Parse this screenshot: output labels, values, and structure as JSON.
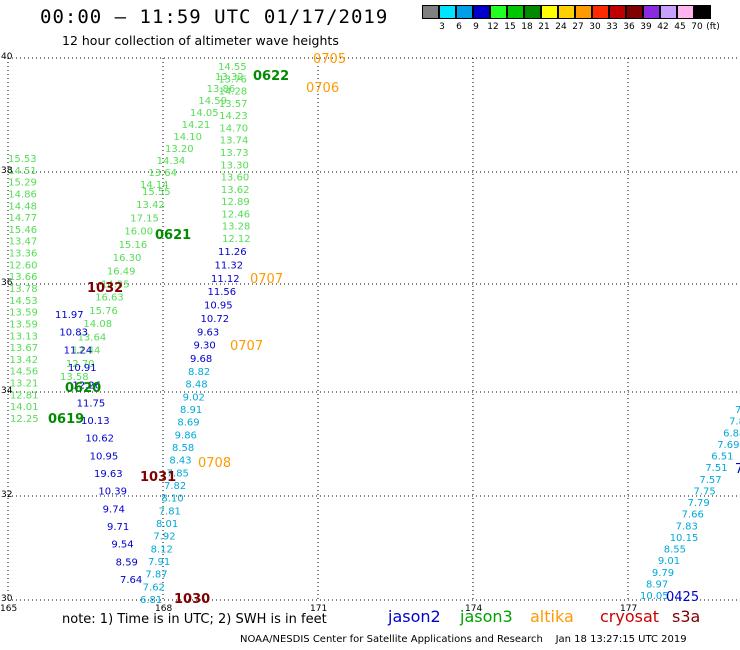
{
  "header": {
    "title": "00:00 — 11:59 UTC 01/17/2019",
    "subtitle": "12 hour collection of altimeter wave heights"
  },
  "legend": {
    "unit": "(ft)",
    "items": [
      {
        "label": "3",
        "color": "#808080"
      },
      {
        "label": "6",
        "color": "#00e5ff"
      },
      {
        "label": "9",
        "color": "#00a0e8"
      },
      {
        "label": "12",
        "color": "#0000cc"
      },
      {
        "label": "15",
        "color": "#22ff22"
      },
      {
        "label": "18",
        "color": "#00c800"
      },
      {
        "label": "21",
        "color": "#008a00"
      },
      {
        "label": "24",
        "color": "#ffff00"
      },
      {
        "label": "27",
        "color": "#ffd000"
      },
      {
        "label": "30",
        "color": "#ff9a00"
      },
      {
        "label": "33",
        "color": "#ff2a00"
      },
      {
        "label": "36",
        "color": "#c00000"
      },
      {
        "label": "39",
        "color": "#800000"
      },
      {
        "label": "42",
        "color": "#8a2be2"
      },
      {
        "label": "45",
        "color": "#c8a0ff"
      },
      {
        "label": "70",
        "color": "#ffb4f0"
      },
      {
        "label": "",
        "color": "#000000"
      }
    ]
  },
  "axes": {
    "lat_labels": [
      "40",
      "38",
      "36",
      "34",
      "32",
      "30"
    ],
    "lon_labels": [
      "165",
      "168",
      "171",
      "174",
      "177"
    ]
  },
  "footer": {
    "note": "note:  1) Time is in UTC;  2) SWH is in feet",
    "satellites": [
      {
        "name": "jason2",
        "color": "#0000cc"
      },
      {
        "name": "jason3",
        "color": "#00a000"
      },
      {
        "name": "altika",
        "color": "#ff9a00"
      },
      {
        "name": "cryosat",
        "color": "#cc0000"
      },
      {
        "name": "s3a",
        "color": "#800000"
      }
    ],
    "credit": "NOAA/NESDIS Center for Satellite Applications and Research    Jan 18 13:27:15 UTC 2019"
  },
  "colors": {
    "light_green": "#55dd55",
    "dark_green": "#008a00",
    "dark_blue": "#0000cc",
    "cyan": "#00a8d8",
    "orange": "#ff9a00",
    "maroon": "#800000"
  },
  "tracks": {
    "t1": [
      "15.53",
      "14.51",
      "15.29",
      "14.86",
      "14.48",
      "14.77",
      "15.46",
      "13.47",
      "13.36",
      "12.60",
      "13.66",
      "13.78",
      "14.53",
      "13.59",
      "13.59",
      "13.13",
      "13.67",
      "13.42",
      "14.56",
      "13.21",
      "12.81",
      "14.01",
      "12.25"
    ],
    "t2": [
      "15.55",
      "13.42",
      "17.15",
      "16.00",
      "15.16",
      "16.30",
      "16.49",
      "14.25",
      "16.63",
      "15.76",
      "14.08",
      "13.64",
      "12.44",
      "12.70",
      "13.58"
    ],
    "t3": [
      "13.32",
      "13.86",
      "14.59",
      "14.05",
      "14.21",
      "14.10",
      "13.20",
      "14.34",
      "13.64",
      "14.14"
    ],
    "t4": [
      "14.55",
      "13.76",
      "14.28",
      "13.57",
      "14.23",
      "14.70",
      "13.74",
      "13.73",
      "13.30",
      "13.60",
      "13.62",
      "12.89",
      "12.46",
      "13.28",
      "12.12"
    ],
    "t5": [
      "11.26",
      "11.32",
      "11.12",
      "11.56",
      "10.95",
      "10.72",
      "9.63",
      "9.30",
      "9.68"
    ],
    "t6": [
      "8.82",
      "8.48",
      "9.02",
      "8.91",
      "8.69",
      "9.86",
      "8.58",
      "8.43",
      "7.85",
      "7.82",
      "8.10",
      "7.81",
      "8.01",
      "7.92",
      "8.12",
      "7.91",
      "7.87",
      "7.62",
      "6.81"
    ],
    "t7": [
      "11.97",
      "10.83",
      "11.24",
      "10.91",
      "12.26",
      "11.75",
      "10.13",
      "10.62",
      "10.95",
      "19.63",
      "10.39",
      "9.74",
      "9.71",
      "9.54",
      "8.59",
      "7.64"
    ],
    "t8": [
      "7.62",
      "7.83",
      "6.88",
      "7.69",
      "6.51",
      "7.51",
      "7.57",
      "7.75",
      "7.79",
      "7.66",
      "7.83",
      "10.15",
      "8.55",
      "9.01",
      "9.79",
      "8.97",
      "10.05"
    ],
    "labels": {
      "a": "0705",
      "b": "0622",
      "c": "0706",
      "d": "0621",
      "e": "1032",
      "f": "0707",
      "g": "0707",
      "h": "0620",
      "i": "0619",
      "j": "0708",
      "k": "1031",
      "l": "1030",
      "m": "0425",
      "n": "7"
    }
  }
}
